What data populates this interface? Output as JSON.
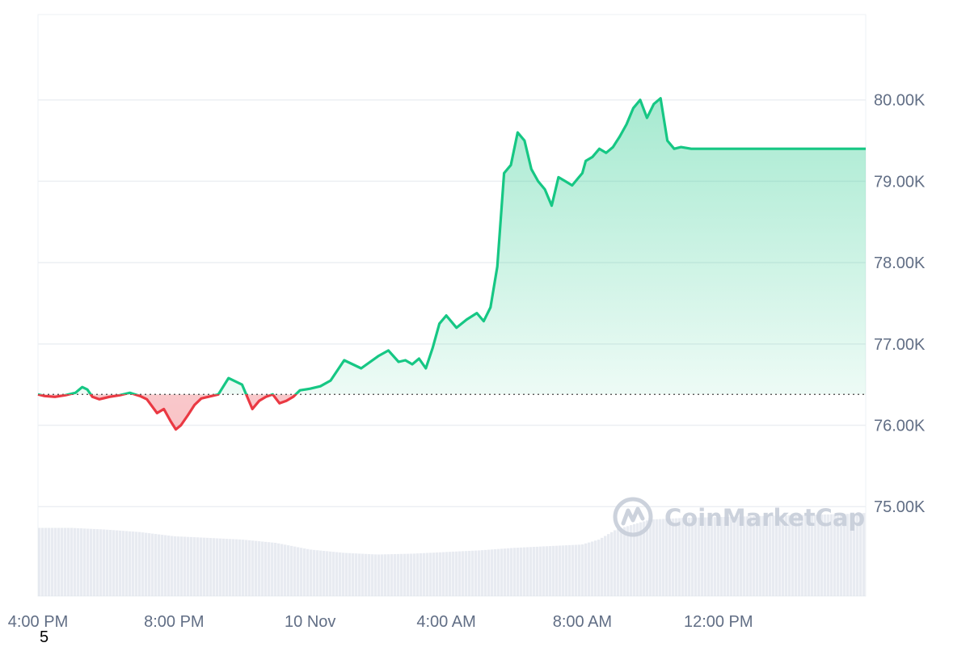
{
  "watermark": {
    "text": "CoinMarketCap",
    "icon": "coinmarketcap-logo-icon"
  },
  "corner_label": "5",
  "chart_data": {
    "type": "area",
    "title": "",
    "xlabel": "",
    "ylabel": "",
    "ylim": [
      73.9,
      81.05
    ],
    "baseline": 76.38,
    "grid": true,
    "y_ticks": [
      {
        "value": 80,
        "label": "80.00K"
      },
      {
        "value": 79,
        "label": "79.00K"
      },
      {
        "value": 78,
        "label": "78.00K"
      },
      {
        "value": 77,
        "label": "77.00K"
      },
      {
        "value": 76,
        "label": "76.00K"
      },
      {
        "value": 75,
        "label": "75.00K"
      }
    ],
    "x_range": [
      0,
      24.33
    ],
    "x_ticks": [
      {
        "value": 0,
        "label": "4:00 PM"
      },
      {
        "value": 4,
        "label": "8:00 PM"
      },
      {
        "value": 8,
        "label": "10 Nov"
      },
      {
        "value": 12,
        "label": "4:00 AM"
      },
      {
        "value": 16,
        "label": "8:00 AM"
      },
      {
        "value": 20,
        "label": "12:00 PM"
      }
    ],
    "price_series": {
      "x": [
        0,
        0.2,
        0.5,
        0.8,
        1.1,
        1.3,
        1.45,
        1.6,
        1.8,
        2.1,
        2.4,
        2.7,
        3.0,
        3.2,
        3.5,
        3.7,
        3.9,
        4.05,
        4.2,
        4.4,
        4.6,
        4.8,
        5.0,
        5.3,
        5.6,
        6.0,
        6.3,
        6.5,
        6.7,
        6.9,
        7.1,
        7.3,
        7.5,
        7.7,
        8.0,
        8.3,
        8.6,
        9.0,
        9.5,
        10.0,
        10.3,
        10.6,
        10.8,
        11.0,
        11.2,
        11.4,
        11.6,
        11.8,
        12.0,
        12.3,
        12.6,
        12.9,
        13.1,
        13.3,
        13.5,
        13.7,
        13.9,
        14.1,
        14.3,
        14.5,
        14.7,
        14.9,
        15.1,
        15.3,
        15.5,
        15.7,
        15.9,
        16.0,
        16.1,
        16.3,
        16.5,
        16.7,
        16.9,
        17.1,
        17.3,
        17.5,
        17.7,
        17.9,
        18.1,
        18.3,
        18.5,
        18.7,
        18.9,
        19.2,
        19.5,
        19.8,
        20.1,
        20.4,
        20.7,
        21.0,
        21.3,
        21.6,
        21.9,
        22.2,
        22.5,
        22.8,
        23.1,
        23.4,
        23.7,
        23.9,
        24.1,
        24.33
      ],
      "y": [
        76.38,
        76.36,
        76.35,
        76.37,
        76.4,
        76.47,
        76.44,
        76.35,
        76.32,
        76.35,
        76.37,
        76.4,
        76.36,
        76.32,
        76.15,
        76.2,
        76.05,
        75.95,
        76.0,
        76.12,
        76.25,
        76.33,
        76.35,
        76.38,
        76.58,
        76.5,
        76.2,
        76.3,
        76.35,
        76.38,
        76.27,
        76.3,
        76.35,
        76.43,
        76.45,
        76.48,
        76.55,
        76.8,
        76.7,
        76.85,
        76.92,
        76.78,
        76.8,
        76.75,
        76.82,
        76.7,
        76.95,
        77.25,
        77.35,
        77.2,
        77.3,
        77.38,
        77.28,
        77.45,
        77.95,
        79.1,
        79.2,
        79.6,
        79.5,
        79.15,
        79.0,
        78.9,
        78.7,
        79.05,
        79.0,
        78.95,
        79.05,
        79.1,
        79.25,
        79.3,
        79.4,
        79.35,
        79.42,
        79.55,
        79.7,
        79.9,
        80.0,
        79.78,
        79.95,
        80.02,
        79.5,
        79.4,
        79.42,
        79.4,
        79.4,
        79.4,
        79.4,
        79.4,
        79.4,
        79.4,
        79.4,
        79.4,
        79.4,
        79.4,
        79.4,
        79.4,
        79.4,
        79.4,
        79.4,
        79.4,
        79.4,
        79.4
      ],
      "up_color": "#16c784",
      "down_color": "#ea3943"
    },
    "volume_series": {
      "x": [
        0,
        1,
        2,
        3,
        4,
        5,
        6,
        7,
        8,
        9,
        10,
        11,
        12,
        13,
        14,
        15,
        16,
        16.5,
        17,
        18,
        19,
        20,
        21,
        22,
        23,
        24,
        24.33
      ],
      "values": [
        0.82,
        0.82,
        0.8,
        0.77,
        0.72,
        0.7,
        0.68,
        0.64,
        0.56,
        0.52,
        0.5,
        0.51,
        0.53,
        0.55,
        0.58,
        0.6,
        0.62,
        0.68,
        0.8,
        0.92,
        0.94,
        0.95,
        0.96,
        0.97,
        0.98,
        0.99,
        1.0
      ],
      "color": "#d5dbe5"
    }
  }
}
